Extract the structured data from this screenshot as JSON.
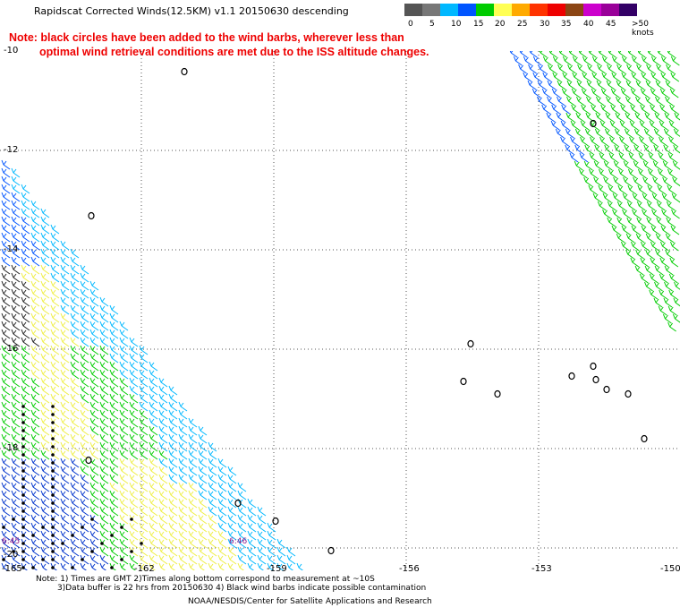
{
  "title": "Rapidscat Corrected Winds(12.5KM) v1.1 20150630 descending",
  "note": {
    "line1": "Note: black circles have been added to the wind barbs, wherever less than",
    "line2": "optimal wind retrieval conditions are met due to the ISS altitude changes."
  },
  "legend": {
    "labels": [
      "0",
      "5",
      "10",
      "15",
      "20",
      "25",
      "30",
      "35",
      "40",
      "45",
      ">50 knots"
    ],
    "colors": [
      "#555555",
      "#777777",
      "#00b8ff",
      "#0055ff",
      "#00cc00",
      "#ffff55",
      "#ffaa00",
      "#ff3300",
      "#ee0000",
      "#8b4513",
      "#cc00cc",
      "#990099",
      "#330066"
    ]
  },
  "axes": {
    "y_labels": [
      "-10",
      "-12",
      "-14",
      "-16",
      "-18",
      "-20"
    ],
    "x_labels": [
      "-165",
      "-162",
      "-159",
      "-156",
      "-153",
      "-150"
    ]
  },
  "times": [
    "6:45",
    "6:46"
  ],
  "footer": {
    "line1": "Note: 1) Times are GMT 2)Times along bottom correspond to measurement at ~10S",
    "line2": "3)Data buffer is 22 hrs from 20150630 4) Black wind barbs indicate possible contamination",
    "line3": "NOAA/NESDIS/Center for Satellite Applications and Research"
  }
}
